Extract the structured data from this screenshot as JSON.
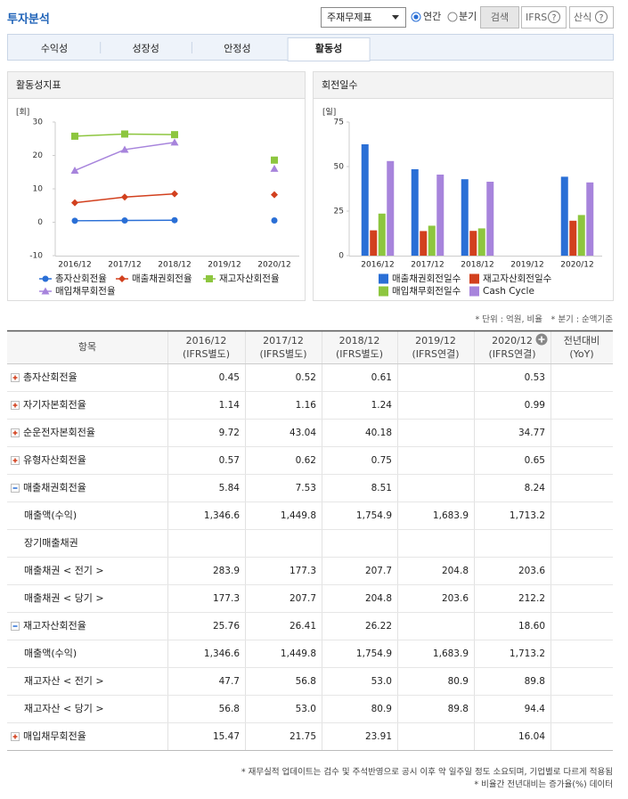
{
  "header": {
    "title": "투자분석",
    "select": "주재무제표",
    "radios": [
      "연간",
      "분기"
    ],
    "search": "검색",
    "ifrs": "IFRS",
    "formula": "산식",
    "help": "?"
  },
  "tabs": [
    "수익성",
    "성장성",
    "안정성",
    "활동성"
  ],
  "active_tab": 3,
  "chart_data": [
    {
      "type": "line",
      "title": "활동성지표",
      "y_unit": "[회]",
      "categories": [
        "2016/12",
        "2017/12",
        "2018/12",
        "2019/12",
        "2020/12"
      ],
      "series": [
        {
          "name": "총자산회전율",
          "color": "#2a6fd6",
          "marker": "circle",
          "values": [
            0.45,
            0.52,
            0.61,
            null,
            0.53
          ]
        },
        {
          "name": "매출채권회전율",
          "color": "#d2401e",
          "marker": "diamond",
          "values": [
            5.84,
            7.53,
            8.51,
            null,
            8.24
          ]
        },
        {
          "name": "재고자산회전율",
          "color": "#8dc63f",
          "marker": "square",
          "values": [
            25.76,
            26.41,
            26.22,
            null,
            18.6
          ]
        },
        {
          "name": "매입채무회전율",
          "color": "#a784dc",
          "marker": "triangle",
          "values": [
            15.47,
            21.75,
            23.91,
            null,
            16.04
          ]
        }
      ],
      "ylim": [
        -10,
        30
      ],
      "yticks": [
        -10,
        0,
        10,
        20,
        30
      ],
      "grid": false
    },
    {
      "type": "bar",
      "title": "회전일수",
      "y_unit": "[일]",
      "categories": [
        "2016/12",
        "2017/12",
        "2018/12",
        "2019/12",
        "2020/12"
      ],
      "series": [
        {
          "name": "매출채권회전일수",
          "color": "#2a6fd6",
          "values": [
            62.5,
            48.5,
            42.9,
            null,
            44.3
          ]
        },
        {
          "name": "재고자산회전일수",
          "color": "#d2401e",
          "values": [
            14.2,
            13.8,
            13.9,
            null,
            19.6
          ]
        },
        {
          "name": "매입채무회전일수",
          "color": "#8dc63f",
          "values": [
            23.6,
            16.8,
            15.3,
            null,
            22.8
          ]
        },
        {
          "name": "Cash Cycle",
          "color": "#a784dc",
          "values": [
            53.1,
            45.5,
            41.5,
            null,
            41.1
          ]
        }
      ],
      "ylim": [
        0,
        75
      ],
      "yticks": [
        0,
        25,
        50,
        75
      ],
      "grid": false
    }
  ],
  "notes": [
    "* 단위 : 억원, 비율",
    "* 분기 : 순액기준"
  ],
  "table": {
    "header": [
      [
        "항목"
      ],
      [
        "2016/12",
        "(IFRS별도)"
      ],
      [
        "2017/12",
        "(IFRS별도)"
      ],
      [
        "2018/12",
        "(IFRS별도)"
      ],
      [
        "2019/12",
        "(IFRS연결)"
      ],
      [
        "2020/12",
        "(IFRS연결)"
      ],
      [
        "전년대비",
        "(YoY)"
      ]
    ],
    "rows": [
      {
        "label": "총자산회전율",
        "toggle": "plus",
        "values": [
          "0.45",
          "0.52",
          "0.61",
          null,
          "0.53",
          null
        ]
      },
      {
        "label": "자기자본회전율",
        "toggle": "plus",
        "values": [
          "1.14",
          "1.16",
          "1.24",
          null,
          "0.99",
          null
        ]
      },
      {
        "label": "순운전자본회전율",
        "toggle": "plus",
        "values": [
          "9.72",
          "43.04",
          "40.18",
          null,
          "34.77",
          null
        ]
      },
      {
        "label": "유형자산회전율",
        "toggle": "plus",
        "values": [
          "0.57",
          "0.62",
          "0.75",
          null,
          "0.65",
          null
        ]
      },
      {
        "label": "매출채권회전율",
        "toggle": "minus",
        "values": [
          "5.84",
          "7.53",
          "8.51",
          null,
          "8.24",
          null
        ]
      },
      {
        "label": "매출액(수익)",
        "values": [
          "1,346.6",
          "1,449.8",
          "1,754.9",
          "1,683.9",
          "1,713.2",
          null
        ]
      },
      {
        "label": "장기매출채권",
        "values": [
          null,
          null,
          null,
          null,
          null,
          null
        ]
      },
      {
        "label": "매출채권 < 전기 >",
        "values": [
          "283.9",
          "177.3",
          "207.7",
          "204.8",
          "203.6",
          null
        ]
      },
      {
        "label": "매출채권 < 당기 >",
        "values": [
          "177.3",
          "207.7",
          "204.8",
          "203.6",
          "212.2",
          null
        ]
      },
      {
        "label": "재고자산회전율",
        "toggle": "minus",
        "values": [
          "25.76",
          "26.41",
          "26.22",
          null,
          "18.60",
          null
        ]
      },
      {
        "label": "매출액(수익)",
        "values": [
          "1,346.6",
          "1,449.8",
          "1,754.9",
          "1,683.9",
          "1,713.2",
          null
        ]
      },
      {
        "label": "재고자산 < 전기 >",
        "values": [
          "47.7",
          "56.8",
          "53.0",
          "80.9",
          "89.8",
          null
        ]
      },
      {
        "label": "재고자산 < 당기 >",
        "values": [
          "56.8",
          "53.0",
          "80.9",
          "89.8",
          "94.4",
          null
        ]
      },
      {
        "label": "매입채무회전율",
        "toggle": "plus",
        "values": [
          "15.47",
          "21.75",
          "23.91",
          null,
          "16.04",
          null
        ]
      }
    ]
  },
  "footnotes": [
    "* 재무실적 업데이트는 검수 및 주석반영으로 공시 이후 약 일주일 정도 소요되며, 기업별로 다르게 적용됨",
    "* 비율간 전년대비는 증가율(%) 데이터"
  ]
}
